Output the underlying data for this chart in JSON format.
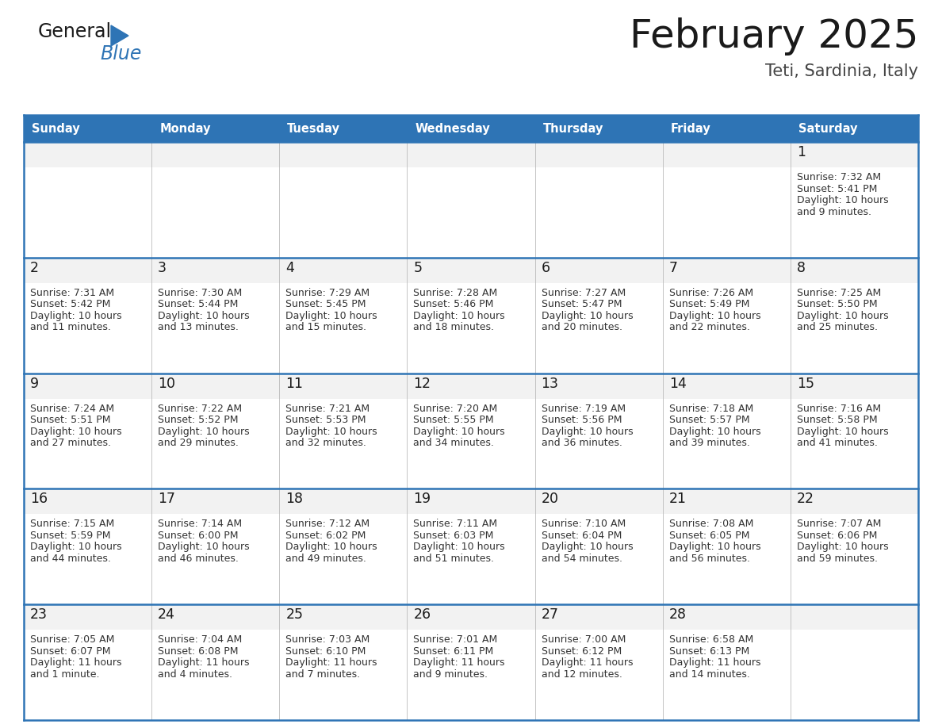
{
  "title": "February 2025",
  "subtitle": "Teti, Sardinia, Italy",
  "header_bg": "#2E74B5",
  "header_text_color": "#FFFFFF",
  "cell_top_bg": "#F2F2F2",
  "cell_body_bg": "#FFFFFF",
  "border_color": "#2E74B5",
  "day_names": [
    "Sunday",
    "Monday",
    "Tuesday",
    "Wednesday",
    "Thursday",
    "Friday",
    "Saturday"
  ],
  "days": [
    {
      "day": 1,
      "col": 6,
      "row": 0,
      "sunrise": "7:32 AM",
      "sunset": "5:41 PM",
      "daylight_line1": "Daylight: 10 hours",
      "daylight_line2": "and 9 minutes."
    },
    {
      "day": 2,
      "col": 0,
      "row": 1,
      "sunrise": "7:31 AM",
      "sunset": "5:42 PM",
      "daylight_line1": "Daylight: 10 hours",
      "daylight_line2": "and 11 minutes."
    },
    {
      "day": 3,
      "col": 1,
      "row": 1,
      "sunrise": "7:30 AM",
      "sunset": "5:44 PM",
      "daylight_line1": "Daylight: 10 hours",
      "daylight_line2": "and 13 minutes."
    },
    {
      "day": 4,
      "col": 2,
      "row": 1,
      "sunrise": "7:29 AM",
      "sunset": "5:45 PM",
      "daylight_line1": "Daylight: 10 hours",
      "daylight_line2": "and 15 minutes."
    },
    {
      "day": 5,
      "col": 3,
      "row": 1,
      "sunrise": "7:28 AM",
      "sunset": "5:46 PM",
      "daylight_line1": "Daylight: 10 hours",
      "daylight_line2": "and 18 minutes."
    },
    {
      "day": 6,
      "col": 4,
      "row": 1,
      "sunrise": "7:27 AM",
      "sunset": "5:47 PM",
      "daylight_line1": "Daylight: 10 hours",
      "daylight_line2": "and 20 minutes."
    },
    {
      "day": 7,
      "col": 5,
      "row": 1,
      "sunrise": "7:26 AM",
      "sunset": "5:49 PM",
      "daylight_line1": "Daylight: 10 hours",
      "daylight_line2": "and 22 minutes."
    },
    {
      "day": 8,
      "col": 6,
      "row": 1,
      "sunrise": "7:25 AM",
      "sunset": "5:50 PM",
      "daylight_line1": "Daylight: 10 hours",
      "daylight_line2": "and 25 minutes."
    },
    {
      "day": 9,
      "col": 0,
      "row": 2,
      "sunrise": "7:24 AM",
      "sunset": "5:51 PM",
      "daylight_line1": "Daylight: 10 hours",
      "daylight_line2": "and 27 minutes."
    },
    {
      "day": 10,
      "col": 1,
      "row": 2,
      "sunrise": "7:22 AM",
      "sunset": "5:52 PM",
      "daylight_line1": "Daylight: 10 hours",
      "daylight_line2": "and 29 minutes."
    },
    {
      "day": 11,
      "col": 2,
      "row": 2,
      "sunrise": "7:21 AM",
      "sunset": "5:53 PM",
      "daylight_line1": "Daylight: 10 hours",
      "daylight_line2": "and 32 minutes."
    },
    {
      "day": 12,
      "col": 3,
      "row": 2,
      "sunrise": "7:20 AM",
      "sunset": "5:55 PM",
      "daylight_line1": "Daylight: 10 hours",
      "daylight_line2": "and 34 minutes."
    },
    {
      "day": 13,
      "col": 4,
      "row": 2,
      "sunrise": "7:19 AM",
      "sunset": "5:56 PM",
      "daylight_line1": "Daylight: 10 hours",
      "daylight_line2": "and 36 minutes."
    },
    {
      "day": 14,
      "col": 5,
      "row": 2,
      "sunrise": "7:18 AM",
      "sunset": "5:57 PM",
      "daylight_line1": "Daylight: 10 hours",
      "daylight_line2": "and 39 minutes."
    },
    {
      "day": 15,
      "col": 6,
      "row": 2,
      "sunrise": "7:16 AM",
      "sunset": "5:58 PM",
      "daylight_line1": "Daylight: 10 hours",
      "daylight_line2": "and 41 minutes."
    },
    {
      "day": 16,
      "col": 0,
      "row": 3,
      "sunrise": "7:15 AM",
      "sunset": "5:59 PM",
      "daylight_line1": "Daylight: 10 hours",
      "daylight_line2": "and 44 minutes."
    },
    {
      "day": 17,
      "col": 1,
      "row": 3,
      "sunrise": "7:14 AM",
      "sunset": "6:00 PM",
      "daylight_line1": "Daylight: 10 hours",
      "daylight_line2": "and 46 minutes."
    },
    {
      "day": 18,
      "col": 2,
      "row": 3,
      "sunrise": "7:12 AM",
      "sunset": "6:02 PM",
      "daylight_line1": "Daylight: 10 hours",
      "daylight_line2": "and 49 minutes."
    },
    {
      "day": 19,
      "col": 3,
      "row": 3,
      "sunrise": "7:11 AM",
      "sunset": "6:03 PM",
      "daylight_line1": "Daylight: 10 hours",
      "daylight_line2": "and 51 minutes."
    },
    {
      "day": 20,
      "col": 4,
      "row": 3,
      "sunrise": "7:10 AM",
      "sunset": "6:04 PM",
      "daylight_line1": "Daylight: 10 hours",
      "daylight_line2": "and 54 minutes."
    },
    {
      "day": 21,
      "col": 5,
      "row": 3,
      "sunrise": "7:08 AM",
      "sunset": "6:05 PM",
      "daylight_line1": "Daylight: 10 hours",
      "daylight_line2": "and 56 minutes."
    },
    {
      "day": 22,
      "col": 6,
      "row": 3,
      "sunrise": "7:07 AM",
      "sunset": "6:06 PM",
      "daylight_line1": "Daylight: 10 hours",
      "daylight_line2": "and 59 minutes."
    },
    {
      "day": 23,
      "col": 0,
      "row": 4,
      "sunrise": "7:05 AM",
      "sunset": "6:07 PM",
      "daylight_line1": "Daylight: 11 hours",
      "daylight_line2": "and 1 minute."
    },
    {
      "day": 24,
      "col": 1,
      "row": 4,
      "sunrise": "7:04 AM",
      "sunset": "6:08 PM",
      "daylight_line1": "Daylight: 11 hours",
      "daylight_line2": "and 4 minutes."
    },
    {
      "day": 25,
      "col": 2,
      "row": 4,
      "sunrise": "7:03 AM",
      "sunset": "6:10 PM",
      "daylight_line1": "Daylight: 11 hours",
      "daylight_line2": "and 7 minutes."
    },
    {
      "day": 26,
      "col": 3,
      "row": 4,
      "sunrise": "7:01 AM",
      "sunset": "6:11 PM",
      "daylight_line1": "Daylight: 11 hours",
      "daylight_line2": "and 9 minutes."
    },
    {
      "day": 27,
      "col": 4,
      "row": 4,
      "sunrise": "7:00 AM",
      "sunset": "6:12 PM",
      "daylight_line1": "Daylight: 11 hours",
      "daylight_line2": "and 12 minutes."
    },
    {
      "day": 28,
      "col": 5,
      "row": 4,
      "sunrise": "6:58 AM",
      "sunset": "6:13 PM",
      "daylight_line1": "Daylight: 11 hours",
      "daylight_line2": "and 14 minutes."
    }
  ],
  "num_rows": 5,
  "num_cols": 7,
  "title_color": "#1a1a1a",
  "subtitle_color": "#444444",
  "day_num_color": "#1a1a1a",
  "cell_text_color": "#333333",
  "logo_general_color": "#1a1a1a",
  "logo_blue_color": "#2E74B5"
}
